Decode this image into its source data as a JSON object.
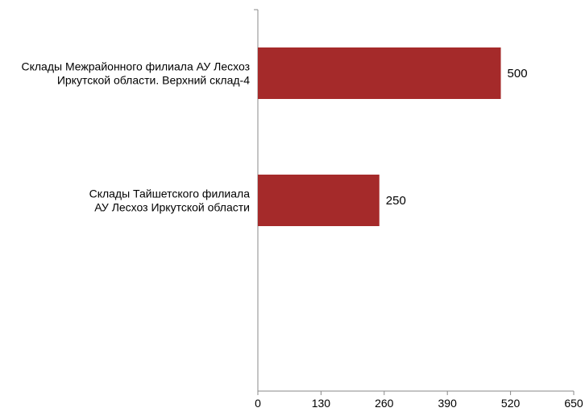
{
  "chart_data": {
    "type": "bar",
    "orientation": "horizontal",
    "categories": [
      [
        "Склады Межрайонного филиала АУ Лесхоз",
        "Иркутской области. Верхний склад-4"
      ],
      [
        "Склады Тайшетского филиала",
        "АУ Лесхоз Иркутской области"
      ]
    ],
    "values": [
      500,
      250
    ],
    "value_labels": [
      "500",
      "250"
    ],
    "xlim": [
      0,
      650
    ],
    "ticks": [
      0,
      130,
      260,
      390,
      520,
      650
    ],
    "tick_labels": [
      "0",
      "130",
      "260",
      "390",
      "520",
      "650"
    ],
    "grid": false,
    "bar_color": "#a52a2a"
  }
}
